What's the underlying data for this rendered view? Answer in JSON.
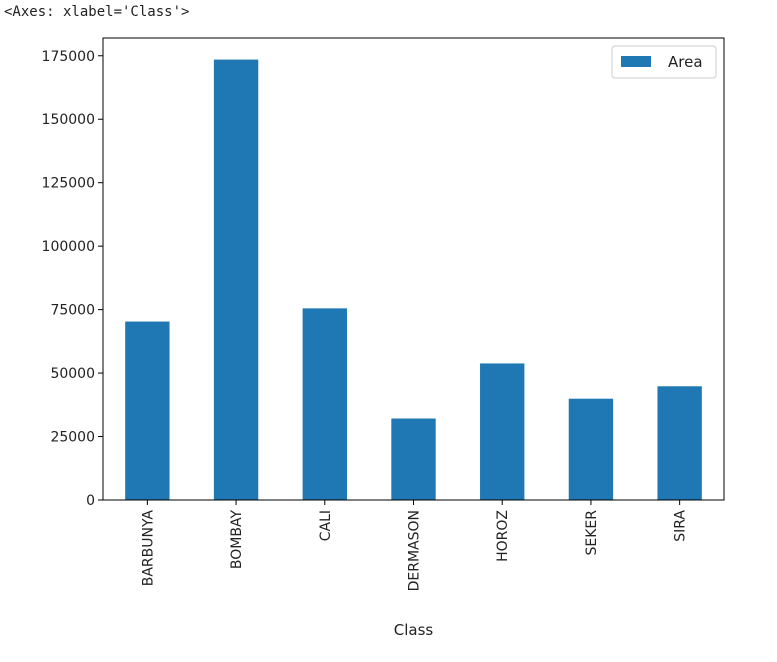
{
  "output": {
    "repr_text": "<Axes: xlabel='Class'>"
  },
  "chart_data": {
    "type": "bar",
    "categories": [
      "BARBUNYA",
      "BOMBAY",
      "CALI",
      "DERMASON",
      "HOROZ",
      "SEKER",
      "SIRA"
    ],
    "series": [
      {
        "name": "Area",
        "color": "#1f77b4",
        "values": [
          70300,
          173500,
          75500,
          32100,
          53800,
          39900,
          44800
        ]
      }
    ],
    "xlabel": "Class",
    "ylabel": "",
    "ylim": [
      0,
      182000
    ],
    "yticks": [
      0,
      25000,
      50000,
      75000,
      100000,
      125000,
      150000,
      175000
    ],
    "legend": {
      "position": "top-right"
    },
    "grid": false
  }
}
